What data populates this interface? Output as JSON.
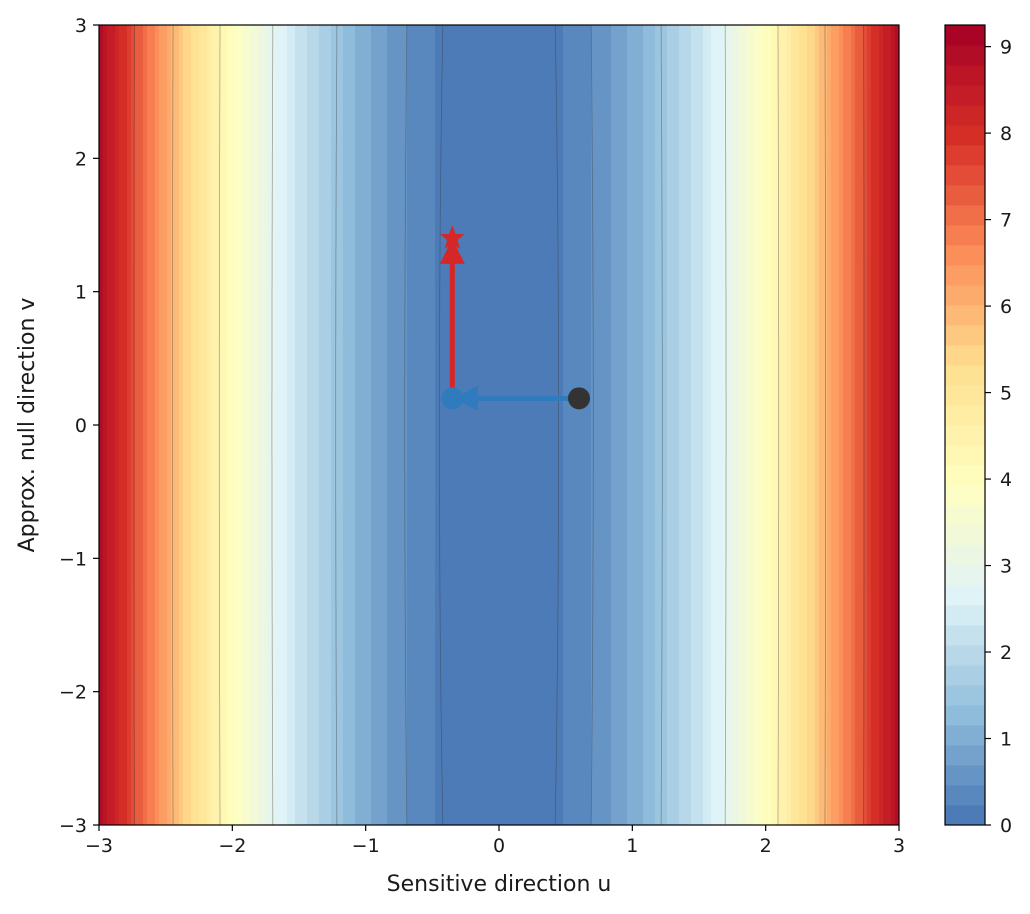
{
  "chart_data": {
    "type": "heatmap",
    "subtype": "filled-contour",
    "xlabel": "Sensitive direction u",
    "ylabel": "Approx. null direction v",
    "xlim": [
      -3,
      3
    ],
    "ylim": [
      -3,
      3
    ],
    "x_ticks": [
      "−3",
      "−2",
      "−1",
      "0",
      "1",
      "2",
      "3"
    ],
    "x_tick_values": [
      -3,
      -2,
      -1,
      0,
      1,
      2,
      3
    ],
    "y_ticks": [
      "−3",
      "−2",
      "−1",
      "0",
      "1",
      "2",
      "3"
    ],
    "y_tick_values": [
      -3,
      -2,
      -1,
      0,
      1,
      2,
      3
    ],
    "surface": "z ≈ u² (nearly constant along v)",
    "surface_coefficients": {
      "u_squared": 1.0,
      "v_squared": 0.0025
    },
    "colormap": "RdYlBu_r",
    "colormap_stops": [
      "#4575b4",
      "#91bfdb",
      "#e0f3f8",
      "#ffffbf",
      "#fee090",
      "#fc8d59",
      "#d73027",
      "#a50026"
    ],
    "levels_filled": 40,
    "contour_line_levels": [
      0.2,
      0.5,
      1.5,
      2.9,
      4.4,
      6.0,
      7.5
    ],
    "colorbar": {
      "range": [
        0,
        9.25
      ],
      "ticks": [
        "0",
        "1",
        "2",
        "3",
        "4",
        "5",
        "6",
        "7",
        "8",
        "9"
      ],
      "tick_values": [
        0,
        1,
        2,
        3,
        4,
        5,
        6,
        7,
        8,
        9
      ]
    },
    "series": [
      {
        "role": "step along sensitive direction",
        "color": "#2f7bbd",
        "points": [
          {
            "x": 0.6,
            "y": 0.2
          },
          {
            "x": -0.35,
            "y": 0.2
          }
        ]
      },
      {
        "role": "step along null direction",
        "color": "#d62728",
        "points": [
          {
            "x": -0.35,
            "y": 0.2
          },
          {
            "x": -0.35,
            "y": 1.4
          }
        ]
      }
    ],
    "markers": [
      {
        "role": "start",
        "shape": "circle",
        "color": "#333333",
        "x": 0.6,
        "y": 0.2
      },
      {
        "role": "intermediate",
        "shape": "circle",
        "color": "#2f7bbd",
        "x": -0.35,
        "y": 0.2
      },
      {
        "role": "end",
        "shape": "star",
        "color": "#d62728",
        "x": -0.35,
        "y": 1.4
      }
    ],
    "grid": false
  }
}
